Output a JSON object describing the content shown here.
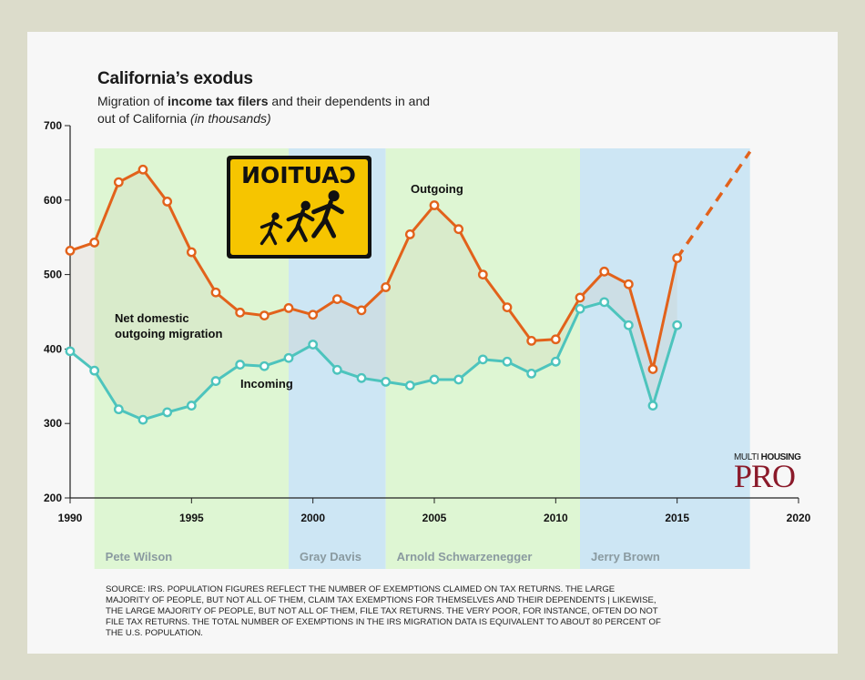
{
  "title": "California’s exodus",
  "subtitle": {
    "part1": "Migration of ",
    "bold": "income tax filers",
    "part2": " and their dependents in and out of California ",
    "italic": "(in thousands)"
  },
  "source": "SOURCE: IRS. POPULATION FIGURES REFLECT THE NUMBER OF EXEMPTIONS CLAIMED ON TAX RETURNS. THE LARGE MAJORITY OF PEOPLE, BUT NOT ALL OF THEM, CLAIM TAX EXEMPTIONS FOR THEMSELVES AND THEIR DEPENDENTS | LIKEWISE, THE LARGE MAJORITY OF PEOPLE, BUT NOT ALL OF THEM, FILE TAX RETURNS. THE VERY POOR, FOR INSTANCE, OFTEN DO NOT FILE TAX RETURNS. THE TOTAL NUMBER OF EXEMPTIONS IN THE IRS MIGRATION DATA IS EQUIVALENT TO ABOUT 80 PERCENT OF THE U.S. POPULATION.",
  "brand": {
    "top_light": "MULTI ",
    "top_bold": "HOUSING",
    "main": "PRO"
  },
  "sign": {
    "text": "CAUTION"
  },
  "chart_data": {
    "type": "line",
    "x": [
      1990,
      1991,
      1992,
      1993,
      1994,
      1995,
      1996,
      1997,
      1998,
      1999,
      2000,
      2001,
      2002,
      2003,
      2004,
      2005,
      2006,
      2007,
      2008,
      2009,
      2010,
      2011,
      2012,
      2013,
      2014,
      2015
    ],
    "series": [
      {
        "name": "Outgoing",
        "color": "#e2621b",
        "values": [
          532,
          543,
          624,
          641,
          598,
          530,
          476,
          449,
          445,
          455,
          446,
          467,
          452,
          483,
          554,
          593,
          561,
          500,
          456,
          411,
          413,
          469,
          504,
          487,
          373,
          522
        ],
        "projection": {
          "x": [
            2015,
            2018
          ],
          "values": [
            522,
            665
          ]
        }
      },
      {
        "name": "Incoming",
        "color": "#4dc4bd",
        "values": [
          397,
          371,
          319,
          305,
          315,
          324,
          357,
          379,
          377,
          388,
          406,
          372,
          361,
          356,
          351,
          359,
          359,
          386,
          383,
          367,
          383,
          454,
          463,
          432,
          324,
          432
        ]
      }
    ],
    "annotations": [
      "Net domestic",
      "outgoing migration"
    ],
    "eras": [
      {
        "label": "Pete Wilson",
        "start": 1991,
        "end": 1999,
        "color": "#def6d3"
      },
      {
        "label": "Gray Davis",
        "start": 1999,
        "end": 2003,
        "color": "#cde6f4"
      },
      {
        "label": "Arnold Schwarzenegger",
        "start": 2003,
        "end": 2011,
        "color": "#def6d3"
      },
      {
        "label": "Jerry Brown",
        "start": 2011,
        "end": 2018,
        "color": "#cde6f4"
      }
    ],
    "xlim": [
      1990,
      2020
    ],
    "ylim": [
      200,
      700
    ],
    "xticks": [
      1990,
      1995,
      2000,
      2005,
      2010,
      2015,
      2020
    ],
    "yticks": [
      200,
      300,
      400,
      500,
      600,
      700
    ]
  }
}
